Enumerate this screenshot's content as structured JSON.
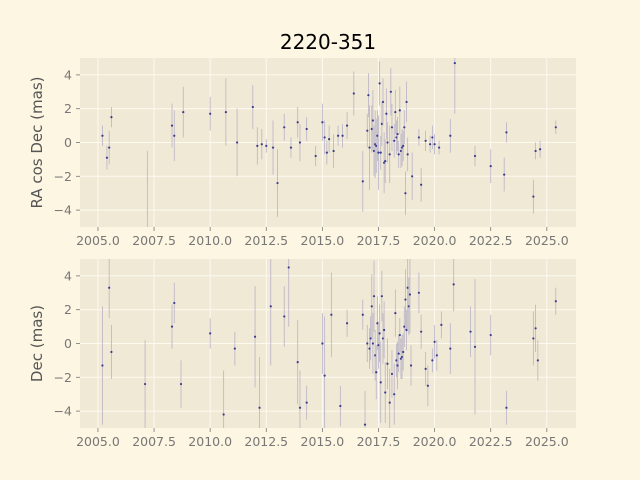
{
  "chart_data": {
    "type": "scatter",
    "title": "2220-351",
    "colors": {
      "figure_bg": "#fdf6e3",
      "axes_bg": "#f0e9d5",
      "grid": "#fdfaf0",
      "tick_text": "#777777",
      "label_text": "#555555",
      "marker": "#3b3b8f",
      "errorbar": "#b9b3c6"
    },
    "grid": true,
    "xlim": [
      2004.2,
      2026.3
    ],
    "x_ticks": [
      2005.0,
      2007.5,
      2010.0,
      2012.5,
      2015.0,
      2017.5,
      2020.0,
      2022.5,
      2025.0
    ],
    "x_tick_labels": [
      "2005.0",
      "2007.5",
      "2010.0",
      "2012.5",
      "2015.0",
      "2017.5",
      "2020.0",
      "2022.5",
      "2025.0"
    ],
    "panels": [
      {
        "ylabel": "RA cos Dec (mas)",
        "ylim": [
          -5.0,
          5.0
        ],
        "y_ticks": [
          -4,
          -2,
          0,
          2,
          4
        ],
        "y_tick_labels": [
          "−4",
          "−2",
          "0",
          "2",
          "4"
        ],
        "points": [
          [
            2005.2,
            0.4,
            0.6
          ],
          [
            2005.4,
            -0.9,
            0.7
          ],
          [
            2005.5,
            -0.3,
            1.0
          ],
          [
            2005.6,
            1.5,
            0.6
          ],
          [
            2007.2,
            -5.5,
            5.0
          ],
          [
            2008.3,
            1.0,
            1.3
          ],
          [
            2008.4,
            0.4,
            1.5
          ],
          [
            2008.8,
            1.8,
            1.5
          ],
          [
            2010.0,
            1.7,
            1.0
          ],
          [
            2010.7,
            1.8,
            2.0
          ],
          [
            2011.2,
            0.0,
            2.0
          ],
          [
            2011.9,
            2.1,
            1.3
          ],
          [
            2012.1,
            -0.2,
            1.1
          ],
          [
            2012.3,
            -0.1,
            0.9
          ],
          [
            2012.5,
            -0.2,
            0.4
          ],
          [
            2012.8,
            -0.3,
            1.6
          ],
          [
            2013.0,
            -2.4,
            2.0
          ],
          [
            2013.3,
            0.9,
            0.8
          ],
          [
            2013.6,
            -0.3,
            0.6
          ],
          [
            2013.9,
            1.2,
            0.9
          ],
          [
            2014.0,
            0.0,
            1.1
          ],
          [
            2014.3,
            0.8,
            0.7
          ],
          [
            2014.7,
            -0.8,
            0.6
          ],
          [
            2015.0,
            1.2,
            1.1
          ],
          [
            2015.1,
            0.3,
            1.0
          ],
          [
            2015.2,
            -0.6,
            0.7
          ],
          [
            2015.3,
            0.2,
            0.8
          ],
          [
            2015.5,
            -0.5,
            1.0
          ],
          [
            2015.7,
            0.4,
            0.6
          ],
          [
            2015.9,
            0.4,
            0.7
          ],
          [
            2016.1,
            1.0,
            0.8
          ],
          [
            2016.4,
            2.9,
            1.3
          ],
          [
            2016.8,
            -2.3,
            1.8
          ],
          [
            2017.0,
            0.7,
            1.0
          ],
          [
            2017.05,
            2.8,
            1.3
          ],
          [
            2017.1,
            -0.3,
            2.5
          ],
          [
            2017.2,
            0.8,
            1.4
          ],
          [
            2017.25,
            1.3,
            1.8
          ],
          [
            2017.3,
            -0.5,
            1.5
          ],
          [
            2017.35,
            -0.1,
            2.0
          ],
          [
            2017.4,
            -0.2,
            1.6
          ],
          [
            2017.45,
            0.4,
            1.5
          ],
          [
            2017.5,
            -0.6,
            2.2
          ],
          [
            2017.55,
            3.5,
            1.3
          ],
          [
            2017.6,
            -0.6,
            1.0
          ],
          [
            2017.65,
            1.1,
            1.3
          ],
          [
            2017.7,
            2.4,
            1.4
          ],
          [
            2017.75,
            -1.2,
            1.8
          ],
          [
            2017.8,
            -1.1,
            1.3
          ],
          [
            2017.85,
            1.7,
            1.5
          ],
          [
            2017.9,
            0.0,
            1.2
          ],
          [
            2018.0,
            -0.7,
            1.7
          ],
          [
            2018.05,
            3.0,
            1.4
          ],
          [
            2018.1,
            0.9,
            1.4
          ],
          [
            2018.2,
            0.1,
            1.0
          ],
          [
            2018.25,
            1.8,
            1.3
          ],
          [
            2018.3,
            0.3,
            1.0
          ],
          [
            2018.35,
            0.5,
            1.0
          ],
          [
            2018.4,
            -0.7,
            0.8
          ],
          [
            2018.45,
            1.9,
            1.4
          ],
          [
            2018.5,
            -0.5,
            1.0
          ],
          [
            2018.55,
            -0.3,
            1.1
          ],
          [
            2018.6,
            -0.2,
            0.9
          ],
          [
            2018.65,
            0.9,
            1.0
          ],
          [
            2018.7,
            -3.0,
            1.3
          ],
          [
            2018.75,
            2.4,
            1.2
          ],
          [
            2018.8,
            -0.7,
            1.0
          ],
          [
            2019.0,
            -2.0,
            1.4
          ],
          [
            2019.3,
            0.3,
            0.5
          ],
          [
            2019.4,
            -2.5,
            1.0
          ],
          [
            2019.6,
            0.1,
            0.6
          ],
          [
            2019.8,
            -0.1,
            0.5
          ],
          [
            2019.9,
            0.3,
            0.7
          ],
          [
            2020.0,
            -0.1,
            0.6
          ],
          [
            2020.2,
            -0.3,
            0.4
          ],
          [
            2020.7,
            0.4,
            1.0
          ],
          [
            2020.9,
            4.7,
            3.0
          ],
          [
            2021.8,
            -0.8,
            0.6
          ],
          [
            2022.5,
            -1.4,
            1.0
          ],
          [
            2023.1,
            -1.9,
            1.0
          ],
          [
            2023.2,
            0.6,
            0.6
          ],
          [
            2024.4,
            -3.2,
            1.0
          ],
          [
            2024.5,
            -0.5,
            0.5
          ],
          [
            2024.7,
            -0.4,
            0.5
          ],
          [
            2025.4,
            0.9,
            0.4
          ]
        ]
      },
      {
        "ylabel": "Dec (mas)",
        "ylim": [
          -5.0,
          5.0
        ],
        "y_ticks": [
          -4,
          -2,
          0,
          2,
          4
        ],
        "y_tick_labels": [
          "−4",
          "−2",
          "0",
          "2",
          "4"
        ],
        "points": [
          [
            2005.2,
            -1.3,
            3.5
          ],
          [
            2005.5,
            3.3,
            1.8
          ],
          [
            2005.6,
            -0.5,
            1.6
          ],
          [
            2007.1,
            -2.4,
            2.6
          ],
          [
            2008.3,
            1.0,
            1.3
          ],
          [
            2008.4,
            2.4,
            1.2
          ],
          [
            2008.7,
            -2.4,
            1.4
          ],
          [
            2010.0,
            0.6,
            0.9
          ],
          [
            2010.6,
            -4.2,
            2.6
          ],
          [
            2011.1,
            -0.3,
            1.0
          ],
          [
            2012.0,
            0.4,
            3.0
          ],
          [
            2012.2,
            -3.8,
            3.0
          ],
          [
            2012.7,
            2.2,
            3.5
          ],
          [
            2013.3,
            1.6,
            1.8
          ],
          [
            2013.5,
            4.5,
            3.5
          ],
          [
            2013.9,
            -1.1,
            2.5
          ],
          [
            2014.0,
            -3.8,
            2.2
          ],
          [
            2014.3,
            -3.5,
            1.0
          ],
          [
            2015.0,
            0.0,
            1.8
          ],
          [
            2015.1,
            -1.9,
            3.5
          ],
          [
            2015.4,
            1.7,
            2.5
          ],
          [
            2015.8,
            -3.7,
            1.2
          ],
          [
            2016.1,
            1.2,
            0.8
          ],
          [
            2016.8,
            1.7,
            0.9
          ],
          [
            2016.9,
            -4.8,
            2.0
          ],
          [
            2017.0,
            0.0,
            1.1
          ],
          [
            2017.1,
            -0.3,
            1.2
          ],
          [
            2017.15,
            0.3,
            1.3
          ],
          [
            2017.2,
            2.2,
            1.9
          ],
          [
            2017.25,
            0.0,
            1.8
          ],
          [
            2017.3,
            2.8,
            2.1
          ],
          [
            2017.35,
            -0.7,
            1.5
          ],
          [
            2017.4,
            -1.7,
            1.6
          ],
          [
            2017.45,
            1.2,
            1.6
          ],
          [
            2017.5,
            -0.1,
            1.4
          ],
          [
            2017.55,
            0.6,
            1.7
          ],
          [
            2017.6,
            -2.3,
            2.4
          ],
          [
            2017.65,
            2.8,
            1.5
          ],
          [
            2017.7,
            0.3,
            1.5
          ],
          [
            2017.75,
            0.8,
            1.7
          ],
          [
            2017.8,
            -2.9,
            1.8
          ],
          [
            2017.9,
            -1.2,
            1.5
          ],
          [
            2018.0,
            -3.5,
            2.0
          ],
          [
            2018.1,
            -1.8,
            1.4
          ],
          [
            2018.2,
            -3.0,
            1.8
          ],
          [
            2018.25,
            1.8,
            1.4
          ],
          [
            2018.3,
            -1.0,
            1.0
          ],
          [
            2018.35,
            -1.3,
            1.4
          ],
          [
            2018.4,
            -0.6,
            1.1
          ],
          [
            2018.45,
            0.5,
            1.0
          ],
          [
            2018.5,
            -0.9,
            1.2
          ],
          [
            2018.55,
            -0.8,
            1.3
          ],
          [
            2018.6,
            -0.5,
            1.1
          ],
          [
            2018.65,
            1.0,
            1.2
          ],
          [
            2018.7,
            2.6,
            1.8
          ],
          [
            2018.75,
            0.8,
            1.2
          ],
          [
            2018.8,
            3.3,
            2.5
          ],
          [
            2018.85,
            2.2,
            1.7
          ],
          [
            2018.9,
            2.9,
            2.3
          ],
          [
            2018.95,
            -1.3,
            1.2
          ],
          [
            2019.3,
            3.0,
            1.2
          ],
          [
            2019.4,
            0.7,
            1.0
          ],
          [
            2019.6,
            -1.5,
            1.0
          ],
          [
            2019.7,
            -2.5,
            1.2
          ],
          [
            2019.9,
            -1.0,
            0.7
          ],
          [
            2020.0,
            0.1,
            1.0
          ],
          [
            2020.1,
            -0.7,
            0.9
          ],
          [
            2020.3,
            1.1,
            0.8
          ],
          [
            2020.7,
            -0.3,
            1.5
          ],
          [
            2020.85,
            3.5,
            1.6
          ],
          [
            2021.6,
            0.7,
            1.5
          ],
          [
            2021.8,
            -0.2,
            4.0
          ],
          [
            2022.5,
            0.5,
            1.2
          ],
          [
            2023.2,
            -3.8,
            1.0
          ],
          [
            2024.4,
            0.3,
            1.6
          ],
          [
            2024.5,
            0.9,
            1.4
          ],
          [
            2024.6,
            -1.0,
            1.2
          ],
          [
            2025.4,
            2.5,
            0.8
          ]
        ]
      }
    ]
  }
}
